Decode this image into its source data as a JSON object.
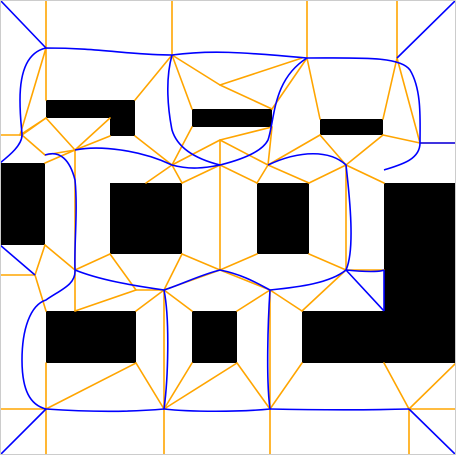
{
  "diagram": {
    "colors": {
      "background": "#ffffff",
      "obstacle": "#000000",
      "skeleton": "#ffa500",
      "offset_curve": "#0000ff",
      "border": "#cccccc"
    }
  }
}
